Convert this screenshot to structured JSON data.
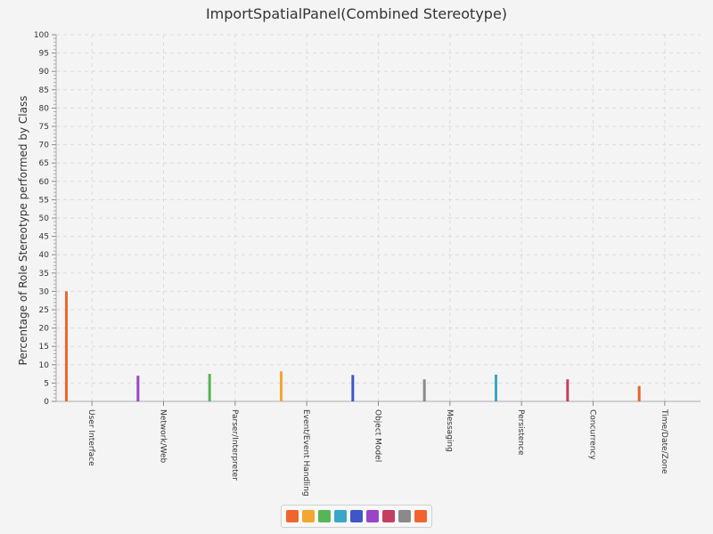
{
  "chart_data": {
    "type": "bar",
    "title": "ImportSpatialPanel(Combined Stereotype)",
    "ylabel": "Percentage of Role Stereotype performed by Class",
    "xlabel": "",
    "ylim": [
      0,
      100
    ],
    "ytick_step": 5,
    "grid": true,
    "legend_position": "bottom",
    "categories": [
      "User Interface",
      "Network/Web",
      "Parser/Interpreter",
      "Event/Event Handling",
      "Object Model",
      "Messaging",
      "Persistence",
      "Concurrency",
      "Time/Date/Zone"
    ],
    "values": [
      30,
      7,
      7.5,
      8.2,
      7.2,
      6,
      7.3,
      6,
      4.2
    ],
    "colors": [
      "#f0652e",
      "#9c44c8",
      "#56b556",
      "#f4a62f",
      "#3e56c8",
      "#8a8a8a",
      "#3aa6c8",
      "#c43e62",
      "#e4652f"
    ]
  },
  "legend": {
    "colors": [
      "#f0652e",
      "#f4a62f",
      "#56b556",
      "#3aa6c8",
      "#3e56c8",
      "#9c44c8",
      "#c43e62",
      "#8a8a8a",
      "#f0652e"
    ]
  }
}
